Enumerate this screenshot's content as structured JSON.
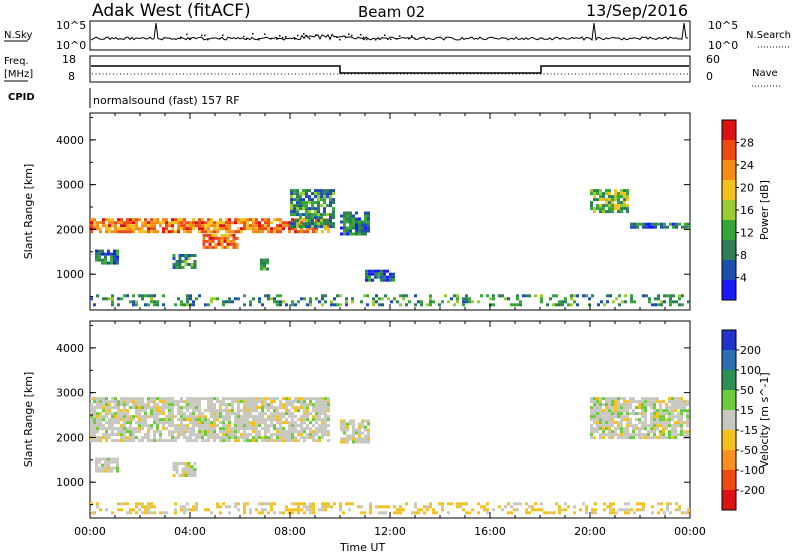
{
  "header": {
    "title": "Adak West (fitACF)",
    "beam": "Beam 02",
    "date": "13/Sep/2016"
  },
  "top_panels": {
    "nsky_label": "N.Sky",
    "nsky_ticks": [
      "10^5",
      "10^0"
    ],
    "nsearch_label": "N.Search",
    "freq_label_1": "Freq.",
    "freq_label_2": "[MHz]",
    "freq_ticks": [
      "18",
      "8"
    ],
    "nave_label": "Nave",
    "nave_ticks": [
      "60",
      "0"
    ],
    "cpid_label": "CPID",
    "cpid_text": "normalsound (fast) 157 RF"
  },
  "chart_data": [
    {
      "type": "heatmap",
      "title": "",
      "parameter": "Power",
      "ylabel": "Slant Range [km]",
      "xlabel": "Time UT",
      "x_ticks": [
        "00:00",
        "04:00",
        "08:00",
        "12:00",
        "16:00",
        "20:00",
        "00:00"
      ],
      "xlim_hours": [
        0,
        24
      ],
      "y_ticks": [
        "1000",
        "2000",
        "3000",
        "4000"
      ],
      "ylim": [
        200,
        4600
      ],
      "colorbar": {
        "label": "Power [dB]",
        "ticks": [
          "4",
          "8",
          "12",
          "16",
          "20",
          "24",
          "28"
        ],
        "range": [
          0,
          32
        ],
        "colors": [
          "#1a1aff",
          "#1c4fb0",
          "#2e7f55",
          "#35a637",
          "#98cc2f",
          "#f4c21e",
          "#f78c15",
          "#ee4a12",
          "#dd1111"
        ]
      },
      "echo_regions": [
        {
          "t_start": 0.0,
          "t_end": 9.7,
          "range_low": 1850,
          "range_high": 2250,
          "power": 24
        },
        {
          "t_start": 4.5,
          "t_end": 6.0,
          "range_low": 1500,
          "range_high": 1900,
          "power": 26
        },
        {
          "t_start": 8.0,
          "t_end": 9.8,
          "range_low": 2000,
          "range_high": 2900,
          "power": 10
        },
        {
          "t_start": 0.2,
          "t_end": 1.2,
          "range_low": 1150,
          "range_high": 1550,
          "power": 8
        },
        {
          "t_start": 3.3,
          "t_end": 4.3,
          "range_low": 1050,
          "range_high": 1450,
          "power": 10
        },
        {
          "t_start": 6.8,
          "t_end": 7.2,
          "range_low": 1050,
          "range_high": 1350,
          "power": 12
        },
        {
          "t_start": 10.0,
          "t_end": 11.3,
          "range_low": 1850,
          "range_high": 2400,
          "power": 8
        },
        {
          "t_start": 11.0,
          "t_end": 12.3,
          "range_low": 800,
          "range_high": 1100,
          "power": 6
        },
        {
          "t_start": 20.0,
          "t_end": 21.6,
          "range_low": 2300,
          "range_high": 2900,
          "power": 14
        },
        {
          "t_start": 21.6,
          "t_end": 24.0,
          "range_low": 1950,
          "range_high": 2150,
          "power": 8
        },
        {
          "t_start": 0.0,
          "t_end": 24.0,
          "range_low": 250,
          "range_high": 550,
          "power": 10
        }
      ]
    },
    {
      "type": "heatmap",
      "title": "",
      "parameter": "Velocity",
      "ylabel": "Slant Range [km]",
      "xlabel": "Time UT",
      "x_ticks": [
        "00:00",
        "04:00",
        "08:00",
        "12:00",
        "16:00",
        "20:00",
        "00:00"
      ],
      "xlim_hours": [
        0,
        24
      ],
      "y_ticks": [
        "1000",
        "2000",
        "3000",
        "4000"
      ],
      "ylim": [
        200,
        4600
      ],
      "colorbar": {
        "label": "Velocity [m s^-1]",
        "ticks": [
          "200",
          "100",
          "50",
          "15",
          "-15",
          "-50",
          "-100",
          "-200"
        ],
        "colors": [
          "#2233cc",
          "#2a6fb0",
          "#2e8f55",
          "#6bcc3a",
          "#c8c8c0",
          "#f4c21e",
          "#f7901e",
          "#ee4a12",
          "#dd1111"
        ]
      },
      "echo_regions": [
        {
          "t_start": 0.0,
          "t_end": 9.7,
          "range_low": 1850,
          "range_high": 2900,
          "velocity": 0
        },
        {
          "t_start": 0.2,
          "t_end": 1.2,
          "range_low": 1150,
          "range_high": 1550,
          "velocity": 0
        },
        {
          "t_start": 3.3,
          "t_end": 4.3,
          "range_low": 1050,
          "range_high": 1450,
          "velocity": 0
        },
        {
          "t_start": 10.0,
          "t_end": 11.3,
          "range_low": 1850,
          "range_high": 2400,
          "velocity": 0
        },
        {
          "t_start": 20.0,
          "t_end": 24.0,
          "range_low": 1950,
          "range_high": 2900,
          "velocity": 0
        },
        {
          "t_start": 0.0,
          "t_end": 24.0,
          "range_low": 250,
          "range_high": 550,
          "velocity": -20
        }
      ]
    }
  ]
}
